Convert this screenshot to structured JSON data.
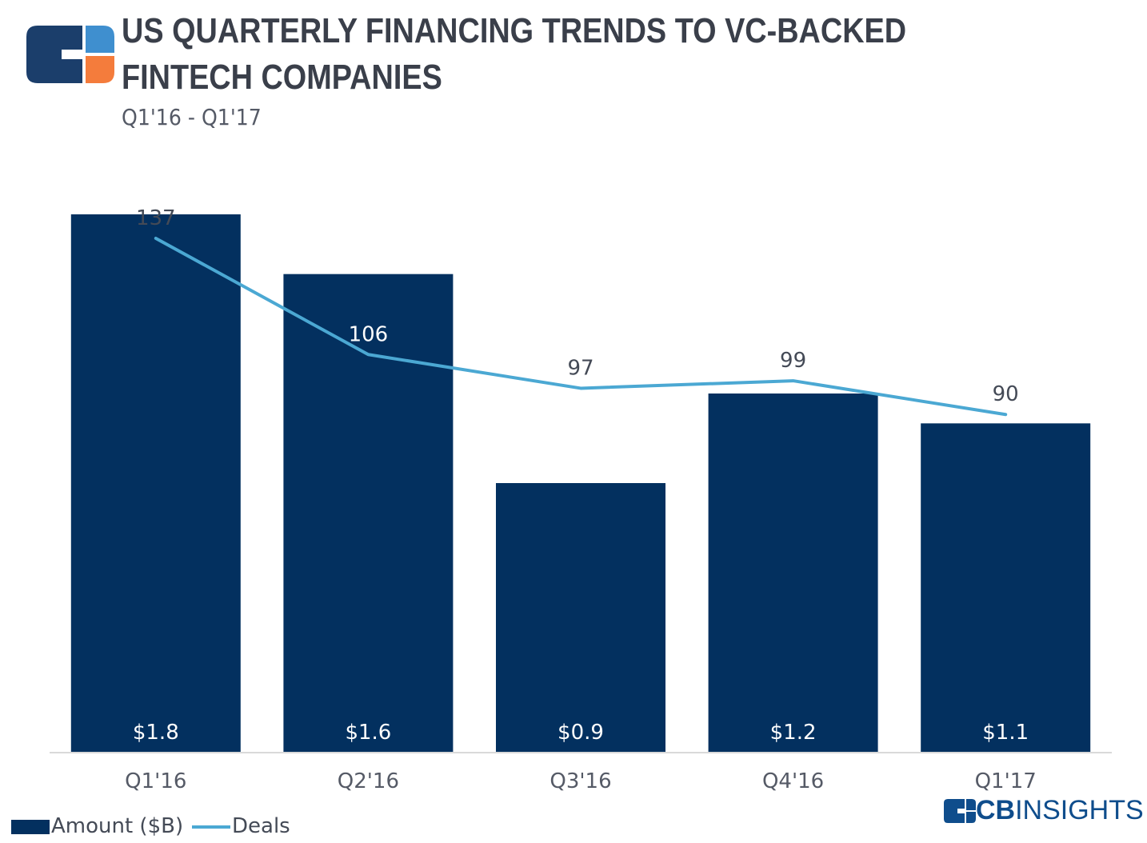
{
  "header": {
    "title": "US QUARTERLY FINANCING TRENDS TO VC-BACKED FINTECH COMPANIES",
    "subtitle": "Q1'16 - Q1'17"
  },
  "colors": {
    "bar": "#03305f",
    "line": "#4ba8d3",
    "logo_dark": "#1b3e6b",
    "logo_blue": "#3f8fcf",
    "logo_orange": "#f47c3c",
    "brand": "#0f4d8c"
  },
  "legend": {
    "amount_label": "Amount ($B)",
    "deals_label": "Deals"
  },
  "brand": {
    "cb": "CB",
    "insights": "INSIGHTS"
  },
  "chart_data": {
    "type": "bar",
    "categories": [
      "Q1'16",
      "Q2'16",
      "Q3'16",
      "Q4'16",
      "Q1'17"
    ],
    "series": [
      {
        "name": "Amount ($B)",
        "type": "bar",
        "values": [
          1.8,
          1.6,
          0.9,
          1.2,
          1.1
        ],
        "labels": [
          "$1.8",
          "$1.6",
          "$0.9",
          "$1.2",
          "$1.1"
        ]
      },
      {
        "name": "Deals",
        "type": "line",
        "values": [
          137,
          106,
          97,
          99,
          90
        ],
        "labels": [
          "137",
          "106",
          "97",
          "99",
          "90"
        ]
      }
    ],
    "bar_axis_range": [
      0,
      1.8
    ],
    "line_axis_range": [
      0,
      137
    ],
    "title": "US QUARTERLY FINANCING TRENDS TO VC-BACKED FINTECH COMPANIES",
    "subtitle": "Q1'16 - Q1'17",
    "grid": false,
    "legend_position": "bottom-left"
  }
}
